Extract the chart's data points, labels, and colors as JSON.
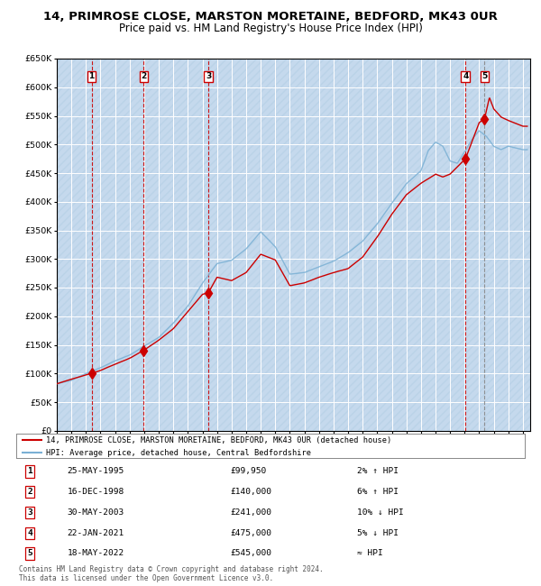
{
  "title": "14, PRIMROSE CLOSE, MARSTON MORETAINE, BEDFORD, MK43 0UR",
  "subtitle": "Price paid vs. HM Land Registry's House Price Index (HPI)",
  "ylim": [
    0,
    650000
  ],
  "xlim_start": 1993.0,
  "xlim_end": 2025.5,
  "plot_bg_color": "#dce9f5",
  "hatch_color": "#c5d9ed",
  "grid_color": "#ffffff",
  "hpi_line_color": "#7ab0d4",
  "price_line_color": "#cc0000",
  "title_fontsize": 9.5,
  "subtitle_fontsize": 8.5,
  "sale_dates_x": [
    1995.39,
    1998.96,
    2003.41,
    2021.06,
    2022.37
  ],
  "sale_prices": [
    99950,
    140000,
    241000,
    475000,
    545000
  ],
  "sale_labels": [
    "1",
    "2",
    "3",
    "4",
    "5"
  ],
  "sale_date_strs": [
    "25-MAY-1995",
    "16-DEC-1998",
    "30-MAY-2003",
    "22-JAN-2021",
    "18-MAY-2022"
  ],
  "sale_price_strs": [
    "£99,950",
    "£140,000",
    "£241,000",
    "£475,000",
    "£545,000"
  ],
  "sale_notes": [
    "2% ↑ HPI",
    "6% ↑ HPI",
    "10% ↓ HPI",
    "5% ↓ HPI",
    "≈ HPI"
  ],
  "legend_line1": "14, PRIMROSE CLOSE, MARSTON MORETAINE, BEDFORD, MK43 0UR (detached house)",
  "legend_line2": "HPI: Average price, detached house, Central Bedfordshire",
  "footer1": "Contains HM Land Registry data © Crown copyright and database right 2024.",
  "footer2": "This data is licensed under the Open Government Licence v3.0.",
  "hpi_keypts_t": [
    1993,
    1994,
    1995,
    1996,
    1997,
    1998,
    1999,
    2000,
    2001,
    2002,
    2003,
    2004,
    2005,
    2006,
    2007,
    2008,
    2009,
    2010,
    2011,
    2012,
    2013,
    2014,
    2015,
    2016,
    2017,
    2018,
    2018.5,
    2019,
    2019.5,
    2020,
    2020.5,
    2021,
    2021.5,
    2022,
    2022.5,
    2023,
    2023.5,
    2024,
    2025
  ],
  "hpi_keypts_v": [
    82000,
    88000,
    100000,
    110000,
    122000,
    132000,
    148000,
    163000,
    188000,
    218000,
    258000,
    292000,
    298000,
    318000,
    348000,
    322000,
    274000,
    277000,
    287000,
    297000,
    312000,
    332000,
    362000,
    398000,
    432000,
    455000,
    490000,
    505000,
    498000,
    472000,
    468000,
    488000,
    510000,
    525000,
    515000,
    498000,
    492000,
    498000,
    492000
  ],
  "price_keypts_t": [
    1993,
    1994,
    1995.39,
    1996,
    1997,
    1998,
    1998.96,
    2000,
    2001,
    2002,
    2003,
    2003.41,
    2004,
    2005,
    2006,
    2007,
    2008,
    2009,
    2010,
    2011,
    2012,
    2013,
    2014,
    2015,
    2016,
    2017,
    2018,
    2019,
    2019.5,
    2020,
    2021.06,
    2022.0,
    2022.37,
    2022.7,
    2023,
    2023.5,
    2024,
    2025
  ],
  "price_keypts_v": [
    82000,
    90000,
    99950,
    105000,
    116000,
    126000,
    140000,
    158000,
    178000,
    208000,
    238000,
    241000,
    268000,
    262000,
    276000,
    308000,
    298000,
    253000,
    258000,
    268000,
    276000,
    283000,
    303000,
    338000,
    378000,
    412000,
    432000,
    448000,
    443000,
    448000,
    475000,
    538000,
    545000,
    582000,
    562000,
    548000,
    542000,
    532000
  ]
}
